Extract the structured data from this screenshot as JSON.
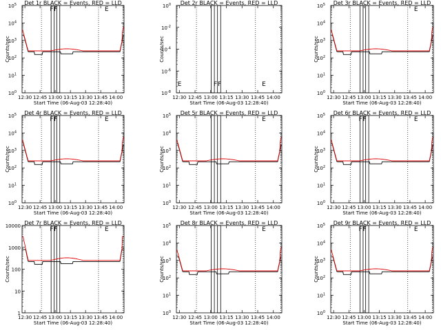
{
  "chart_data": [
    {
      "type": "line",
      "title": "Det 1r BLACK = Events, RED = LLD",
      "xlabel": "Start Time (06-Aug-03 12:28:40)",
      "ylabel": "Counts/sec",
      "x_ticks": [
        "12:30",
        "12:45",
        "13:00",
        "13:15",
        "13:30",
        "13:45",
        "14:00"
      ],
      "y_ticks": [
        "10^0",
        "10^1",
        "10^2",
        "10^3",
        "10^4",
        "10^5"
      ],
      "log_y": true,
      "ylim": [
        1,
        100000
      ],
      "flags": [
        "F",
        "F",
        "E"
      ],
      "profile": "normal",
      "red_peak_log": 3.9,
      "black_peak_log": 3.3
    },
    {
      "type": "line",
      "title": "Det 2r BLACK = Events, RED = LLD",
      "xlabel": "Start Time (06-Aug-03 12:28:40)",
      "ylabel": "Counts/sec",
      "x_ticks": [
        "12:30",
        "12:45",
        "13:00",
        "13:15",
        "13:30",
        "13:45",
        "14:00"
      ],
      "y_ticks": [
        "10^-8",
        "10^-6",
        "10^-4",
        "10^-2",
        "10^0"
      ],
      "log_y": true,
      "ylim": [
        1e-08,
        10
      ],
      "flags": [
        "E",
        "F",
        "F",
        "E"
      ],
      "profile": "none"
    },
    {
      "type": "line",
      "title": "Det 3r BLACK = Events, RED = LLD",
      "xlabel": "Start Time (06-Aug-03 12:28:40)",
      "ylabel": "Counts/sec",
      "x_ticks": [
        "12:30",
        "12:45",
        "13:00",
        "13:15",
        "13:30",
        "13:45",
        "14:00"
      ],
      "y_ticks": [
        "10^0",
        "10^1",
        "10^2",
        "10^3",
        "10^4",
        "10^5"
      ],
      "log_y": true,
      "ylim": [
        1,
        100000
      ],
      "flags": [
        "E"
      ],
      "profile": "normal",
      "red_peak_log": 3.9,
      "black_peak_log": 3.3
    },
    {
      "type": "line",
      "title": "Det 4r BLACK = Events, RED = LLD",
      "xlabel": "Start Time (06-Aug-03 12:28:40)",
      "ylabel": "Counts/sec",
      "x_ticks": [
        "12:30",
        "12:45",
        "13:00",
        "13:15",
        "13:30",
        "13:45",
        "14:00"
      ],
      "y_ticks": [
        "10^0",
        "10^1",
        "10^2",
        "10^3",
        "10^4",
        "10^5"
      ],
      "log_y": true,
      "ylim": [
        1,
        100000
      ],
      "flags": [
        "F",
        "F",
        "E"
      ],
      "profile": "normal",
      "red_peak_log": 4.0,
      "black_peak_log": 3.5
    },
    {
      "type": "line",
      "title": "Det 5r BLACK = Events, RED = LLD",
      "xlabel": "Start Time (06-Aug-03 12:28:40)",
      "ylabel": "Counts/sec",
      "x_ticks": [
        "12:30",
        "12:45",
        "13:00",
        "13:15",
        "13:30",
        "13:45",
        "14:00"
      ],
      "y_ticks": [
        "10^0",
        "10^1",
        "10^2",
        "10^3",
        "10^4",
        "10^5"
      ],
      "log_y": true,
      "ylim": [
        1,
        100000
      ],
      "flags": [
        "E"
      ],
      "profile": "normal",
      "red_peak_log": 4.0,
      "black_peak_log": 3.4
    },
    {
      "type": "line",
      "title": "Det 6r BLACK = Events, RED = LLD",
      "xlabel": "Start Time (06-Aug-03 12:28:40)",
      "ylabel": "Counts/sec",
      "x_ticks": [
        "12:30",
        "12:45",
        "13:00",
        "13:15",
        "13:30",
        "13:45",
        "14:00"
      ],
      "y_ticks": [
        "10^0",
        "10^1",
        "10^2",
        "10^3",
        "10^4",
        "10^5"
      ],
      "log_y": true,
      "ylim": [
        1,
        100000
      ],
      "flags": [
        "F",
        "F",
        "E"
      ],
      "profile": "normal",
      "red_peak_log": 4.0,
      "black_peak_log": 3.4
    },
    {
      "type": "line",
      "title": "Det 7r BLACK = Events, RED = LLD",
      "xlabel": "Start Time (06-Aug-03 12:28:40)",
      "ylabel": "Counts/sec",
      "x_ticks": [
        "12:30",
        "12:45",
        "13:00",
        "13:15",
        "13:30",
        "13:45",
        "14:00"
      ],
      "y_ticks": [
        "1",
        "10",
        "100",
        "1000",
        "10000"
      ],
      "log_y": true,
      "ylim": [
        1,
        10000
      ],
      "flags": [
        "F",
        "F",
        "E"
      ],
      "profile": "normal",
      "red_peak_log": 3.5,
      "black_peak_log": 2.9
    },
    {
      "type": "line",
      "title": "Det 8r BLACK = Events, RED = LLD",
      "xlabel": "Start Time (06-Aug-03 12:28:40)",
      "ylabel": "Counts/sec",
      "x_ticks": [
        "12:30",
        "12:45",
        "13:00",
        "13:15",
        "13:30",
        "13:45",
        "14:00"
      ],
      "y_ticks": [
        "10^0",
        "10^1",
        "10^2",
        "10^3",
        "10^4",
        "10^5"
      ],
      "log_y": true,
      "ylim": [
        1,
        100000
      ],
      "flags": [
        "E"
      ],
      "profile": "normal",
      "red_peak_log": 4.0,
      "black_peak_log": 3.2
    },
    {
      "type": "line",
      "title": "Det 9r BLACK = Events, RED = LLD",
      "xlabel": "Start Time (06-Aug-03 12:28:40)",
      "ylabel": "Counts/sec",
      "x_ticks": [
        "12:30",
        "12:45",
        "13:00",
        "13:15",
        "13:30",
        "13:45",
        "14:00"
      ],
      "y_ticks": [
        "10^0",
        "10^1",
        "10^2",
        "10^3",
        "10^4",
        "10^5"
      ],
      "log_y": true,
      "ylim": [
        1,
        100000
      ],
      "flags": [
        "F",
        "F",
        "E"
      ],
      "profile": "normal",
      "red_peak_log": 3.9,
      "black_peak_log": 3.2
    }
  ]
}
